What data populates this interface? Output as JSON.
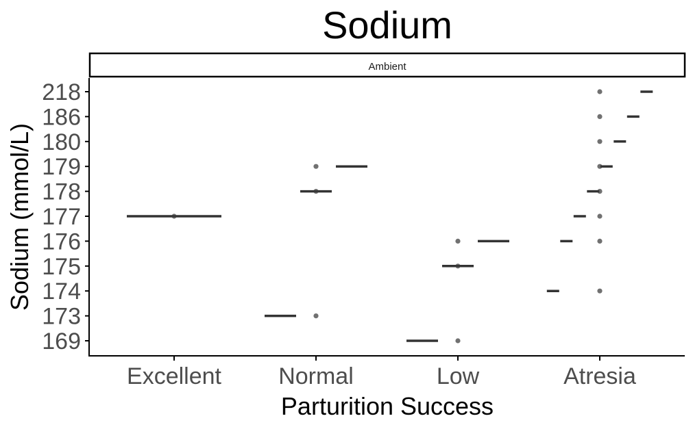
{
  "chart_data": {
    "type": "scatter",
    "title": "Sodium",
    "facet_label": "Ambient",
    "xlabel": "Parturition Success",
    "ylabel": "Sodium (mmol/L)",
    "categories": [
      "Excellent",
      "Normal",
      "Low",
      "Atresia"
    ],
    "y_levels": [
      "169",
      "173",
      "174",
      "175",
      "176",
      "177",
      "178",
      "179",
      "180",
      "186",
      "218"
    ],
    "grid": false,
    "legend": "none",
    "colors": {
      "point": "#3a3a3a",
      "segment": "#333333",
      "axis": "#000000",
      "tick_text": "#4d4d4d"
    },
    "points": [
      {
        "category": "Excellent",
        "y": "177"
      },
      {
        "category": "Normal",
        "y": "173"
      },
      {
        "category": "Normal",
        "y": "178"
      },
      {
        "category": "Normal",
        "y": "179"
      },
      {
        "category": "Low",
        "y": "169"
      },
      {
        "category": "Low",
        "y": "175"
      },
      {
        "category": "Low",
        "y": "176"
      },
      {
        "category": "Atresia",
        "y": "174"
      },
      {
        "category": "Atresia",
        "y": "176"
      },
      {
        "category": "Atresia",
        "y": "177"
      },
      {
        "category": "Atresia",
        "y": "178"
      },
      {
        "category": "Atresia",
        "y": "179"
      },
      {
        "category": "Atresia",
        "y": "180"
      },
      {
        "category": "Atresia",
        "y": "186"
      },
      {
        "category": "Atresia",
        "y": "218"
      }
    ],
    "segments": [
      {
        "category": "Excellent",
        "y": "177",
        "dodge": 0,
        "width": "wide"
      },
      {
        "category": "Normal",
        "y": "173",
        "dodge": -1,
        "width": "medium"
      },
      {
        "category": "Normal",
        "y": "178",
        "dodge": 0,
        "width": "medium"
      },
      {
        "category": "Normal",
        "y": "179",
        "dodge": 1,
        "width": "medium"
      },
      {
        "category": "Low",
        "y": "169",
        "dodge": -1,
        "width": "medium"
      },
      {
        "category": "Low",
        "y": "175",
        "dodge": 0,
        "width": "medium"
      },
      {
        "category": "Low",
        "y": "176",
        "dodge": 1,
        "width": "medium"
      },
      {
        "category": "Atresia",
        "y": "174",
        "dodge": -3.5,
        "width": "narrow"
      },
      {
        "category": "Atresia",
        "y": "176",
        "dodge": -2.5,
        "width": "narrow"
      },
      {
        "category": "Atresia",
        "y": "177",
        "dodge": -1.5,
        "width": "narrow"
      },
      {
        "category": "Atresia",
        "y": "178",
        "dodge": -0.5,
        "width": "narrow"
      },
      {
        "category": "Atresia",
        "y": "179",
        "dodge": 0.5,
        "width": "narrow"
      },
      {
        "category": "Atresia",
        "y": "180",
        "dodge": 1.5,
        "width": "narrow"
      },
      {
        "category": "Atresia",
        "y": "186",
        "dodge": 2.5,
        "width": "narrow"
      },
      {
        "category": "Atresia",
        "y": "218",
        "dodge": 3.5,
        "width": "narrow"
      }
    ]
  }
}
